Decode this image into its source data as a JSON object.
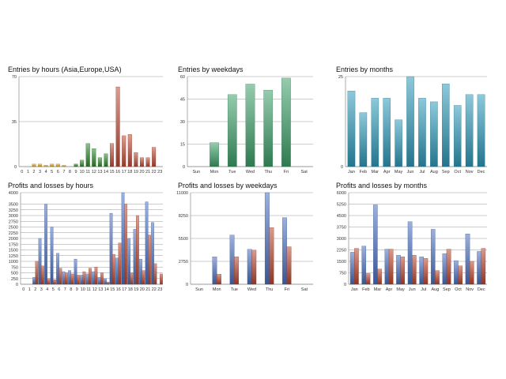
{
  "colors": {
    "grid": "#9a9a9a",
    "axis": "#888888",
    "profit": "#4a72c4",
    "loss": "#c0472e",
    "asia": "#e0a82e",
    "europe": "#2e8a2e",
    "usa": "#c24a36",
    "weekday": "#3fa36b",
    "month": "#2f9cbc"
  },
  "chart_data": [
    {
      "id": "entries-hours",
      "type": "bar",
      "title": "Entries by hours (Asia,Europe,USA)",
      "categories": [
        "0",
        "1",
        "2",
        "3",
        "4",
        "5",
        "6",
        "7",
        "8",
        "9",
        "10",
        "11",
        "12",
        "13",
        "14",
        "15",
        "16",
        "17",
        "18",
        "19",
        "20",
        "21",
        "22",
        "23"
      ],
      "values": [
        0,
        0,
        2,
        2,
        1,
        2,
        2,
        1,
        0,
        2,
        5,
        18,
        14,
        7,
        10,
        18,
        62,
        24,
        25,
        11,
        7,
        7,
        15,
        0
      ],
      "sessions": [
        "asia",
        "asia",
        "asia",
        "asia",
        "asia",
        "asia",
        "asia",
        "asia",
        "europe",
        "europe",
        "europe",
        "europe",
        "europe",
        "europe",
        "europe",
        "usa",
        "usa",
        "usa",
        "usa",
        "usa",
        "usa",
        "usa",
        "usa",
        "usa"
      ],
      "yticks": [
        "0",
        "35",
        "70"
      ],
      "ylim": [
        0,
        70
      ]
    },
    {
      "id": "entries-weekdays",
      "type": "bar",
      "title": "Entries by weekdays",
      "categories": [
        "Sun",
        "Mon",
        "Tue",
        "Wed",
        "Thu",
        "Fri",
        "Sat"
      ],
      "values": [
        0,
        16,
        48,
        55,
        51,
        59,
        0
      ],
      "yticks": [
        "0",
        "15",
        "30",
        "45",
        "60"
      ],
      "ylim": [
        0,
        60
      ]
    },
    {
      "id": "entries-months",
      "type": "bar",
      "title": "Entries by months",
      "categories": [
        "Jan",
        "Feb",
        "Mar",
        "Apr",
        "May",
        "Jun",
        "Jul",
        "Aug",
        "Sep",
        "Oct",
        "Nov",
        "Dec"
      ],
      "values": [
        21,
        15,
        19,
        19,
        13,
        25,
        19,
        18,
        23,
        17,
        20,
        20
      ],
      "yticks": [
        "0",
        "25"
      ],
      "ylim": [
        0,
        25
      ]
    },
    {
      "id": "pl-hours",
      "type": "bar",
      "title": "Profits and losses by hours",
      "categories": [
        "0",
        "1",
        "2",
        "3",
        "4",
        "5",
        "6",
        "7",
        "8",
        "9",
        "10",
        "11",
        "12",
        "13",
        "14",
        "15",
        "16",
        "17",
        "18",
        "19",
        "20",
        "21",
        "22",
        "23"
      ],
      "series": [
        {
          "name": "Profit",
          "values": [
            0,
            0,
            300,
            2000,
            3500,
            2500,
            1350,
            550,
            600,
            1100,
            400,
            450,
            550,
            300,
            250,
            3100,
            1150,
            4000,
            2000,
            2400,
            1100,
            3600,
            2700,
            0
          ]
        },
        {
          "name": "Loss",
          "values": [
            0,
            0,
            1000,
            800,
            250,
            200,
            700,
            500,
            450,
            400,
            550,
            700,
            750,
            500,
            100,
            1300,
            1800,
            3500,
            500,
            3000,
            600,
            2150,
            900,
            450
          ]
        }
      ],
      "yticks": [
        "0",
        "250",
        "500",
        "750",
        "1000",
        "1250",
        "1500",
        "1750",
        "2000",
        "2250",
        "2500",
        "2750",
        "3000",
        "3250",
        "3500",
        "4000"
      ],
      "ylim": [
        0,
        4000
      ]
    },
    {
      "id": "pl-weekdays",
      "type": "bar",
      "title": "Profits and losses by weekdays",
      "categories": [
        "Sun",
        "Mon",
        "Tue",
        "Wed",
        "Thu",
        "Fri",
        "Sat"
      ],
      "series": [
        {
          "name": "Profit",
          "values": [
            0,
            3300,
            5900,
            4200,
            11000,
            8000,
            0
          ]
        },
        {
          "name": "Loss",
          "values": [
            0,
            1200,
            3300,
            4100,
            6800,
            4500,
            0
          ]
        }
      ],
      "yticks": [
        "0",
        "2750",
        "5500",
        "8250",
        "11000"
      ],
      "ylim": [
        0,
        11000
      ]
    },
    {
      "id": "pl-months",
      "type": "bar",
      "title": "Profits and losses by months",
      "categories": [
        "Jan",
        "Feb",
        "Mar",
        "Apr",
        "May",
        "Jun",
        "Jul",
        "Aug",
        "Sep",
        "Oct",
        "Nov",
        "Dec"
      ],
      "series": [
        {
          "name": "Profit",
          "values": [
            2100,
            2500,
            5200,
            2300,
            1900,
            4100,
            1800,
            3600,
            2000,
            1550,
            3300,
            2150
          ]
        },
        {
          "name": "Loss",
          "values": [
            2350,
            700,
            1000,
            2300,
            1800,
            1900,
            1700,
            900,
            2300,
            1200,
            1500,
            2350
          ]
        }
      ],
      "yticks": [
        "0",
        "750",
        "1500",
        "2250",
        "3000",
        "3750",
        "4500",
        "5250",
        "6000"
      ],
      "ylim": [
        0,
        6000
      ]
    }
  ]
}
